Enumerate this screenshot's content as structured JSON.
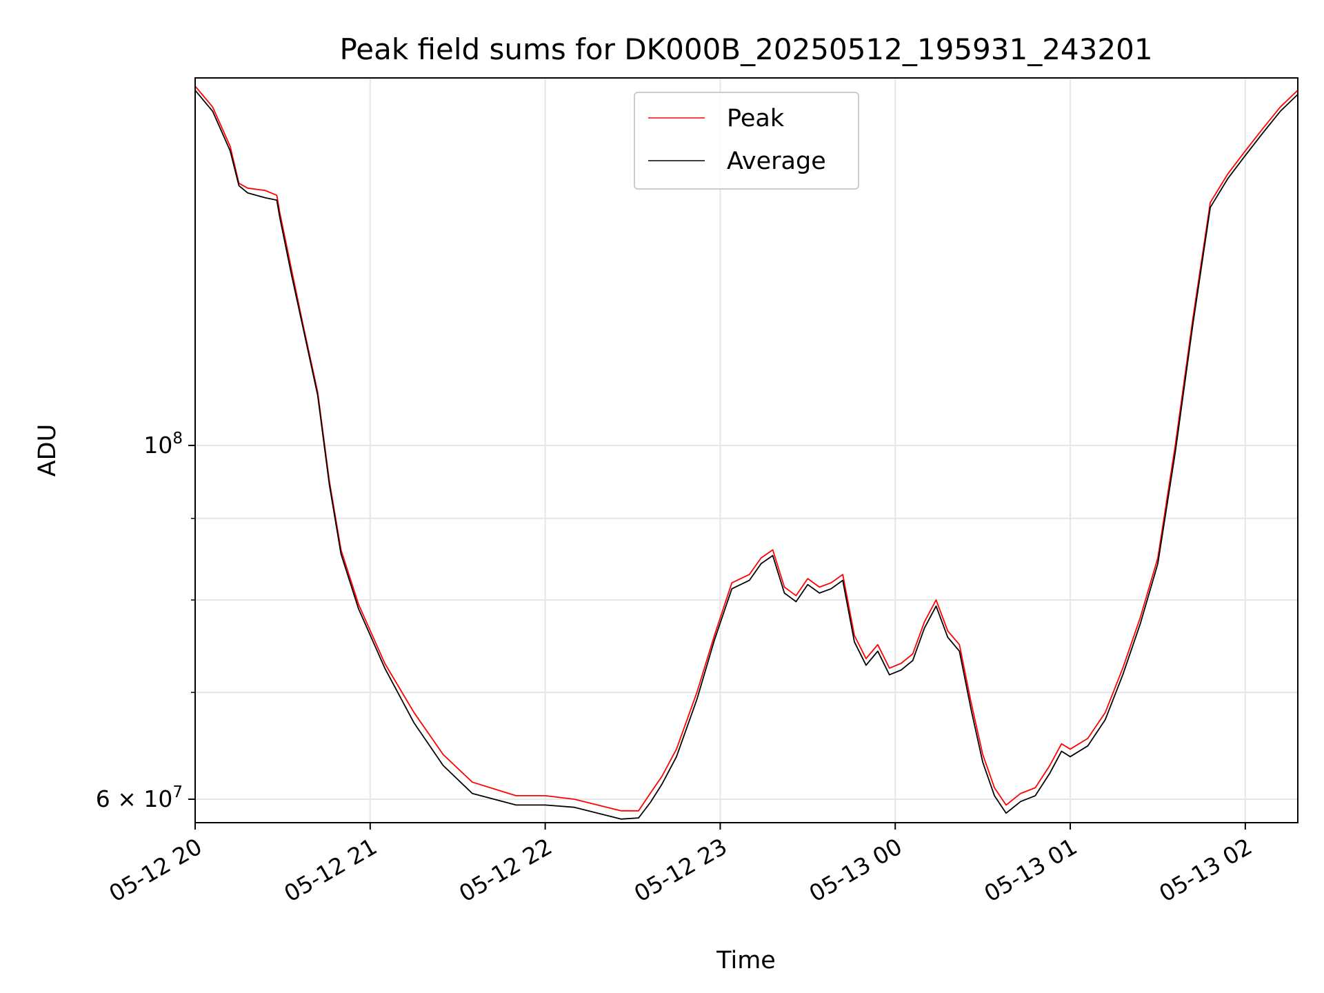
{
  "chart_data": {
    "type": "line",
    "title": "Peak field sums for DK000B_20250512_195931_243201",
    "xlabel": "Time",
    "ylabel": "ADU",
    "y_scale": "log",
    "xlim": [
      "2025-05-12 20:00",
      "2025-05-13 02:18"
    ],
    "ylim": [
      58000000,
      170000000
    ],
    "x_tick_labels": [
      "05-12 20",
      "05-12 21",
      "05-12 22",
      "05-12 23",
      "05-13 00",
      "05-13 01",
      "05-13 02"
    ],
    "y_tick_labels": [
      {
        "mantissa": "",
        "base": "10",
        "exp": "8"
      },
      {
        "mantissa": "6 × ",
        "base": "10",
        "exp": "7"
      }
    ],
    "grid": true,
    "legend_position": "top-center",
    "series": [
      {
        "name": "Peak",
        "color": "#ff0000",
        "x": [
          "2025-05-12 20:00",
          "2025-05-12 20:06",
          "2025-05-12 20:12",
          "2025-05-12 20:15",
          "2025-05-12 20:18",
          "2025-05-12 20:24",
          "2025-05-12 20:28",
          "2025-05-12 20:29",
          "2025-05-12 20:33",
          "2025-05-12 20:37",
          "2025-05-12 20:42",
          "2025-05-12 20:46",
          "2025-05-12 20:50",
          "2025-05-12 20:56",
          "2025-05-12 21:05",
          "2025-05-12 21:15",
          "2025-05-12 21:25",
          "2025-05-12 21:35",
          "2025-05-12 21:50",
          "2025-05-12 22:00",
          "2025-05-12 22:10",
          "2025-05-12 22:18",
          "2025-05-12 22:26",
          "2025-05-12 22:32",
          "2025-05-12 22:36",
          "2025-05-12 22:40",
          "2025-05-12 22:45",
          "2025-05-12 22:52",
          "2025-05-12 22:58",
          "2025-05-12 23:04",
          "2025-05-12 23:10",
          "2025-05-12 23:14",
          "2025-05-12 23:18",
          "2025-05-12 23:22",
          "2025-05-12 23:26",
          "2025-05-12 23:30",
          "2025-05-12 23:34",
          "2025-05-12 23:38",
          "2025-05-12 23:42",
          "2025-05-12 23:46",
          "2025-05-12 23:50",
          "2025-05-12 23:54",
          "2025-05-12 23:58",
          "2025-05-13 00:02",
          "2025-05-13 00:06",
          "2025-05-13 00:10",
          "2025-05-13 00:14",
          "2025-05-13 00:18",
          "2025-05-13 00:22",
          "2025-05-13 00:26",
          "2025-05-13 00:30",
          "2025-05-13 00:34",
          "2025-05-13 00:38",
          "2025-05-13 00:43",
          "2025-05-13 00:48",
          "2025-05-13 00:53",
          "2025-05-13 00:57",
          "2025-05-13 01:00",
          "2025-05-13 01:06",
          "2025-05-13 01:12",
          "2025-05-13 01:18",
          "2025-05-13 01:24",
          "2025-05-13 01:30",
          "2025-05-13 01:36",
          "2025-05-13 01:42",
          "2025-05-13 01:48",
          "2025-05-13 01:54",
          "2025-05-13 02:00",
          "2025-05-13 02:06",
          "2025-05-13 02:12",
          "2025-05-13 02:18"
        ],
        "values": [
          168000000,
          163000000,
          154000000,
          146000000,
          145000000,
          144500000,
          143500000,
          140000000,
          129000000,
          119000000,
          108000000,
          95000000,
          86000000,
          79500000,
          73000000,
          68000000,
          64000000,
          61500000,
          60300000,
          60300000,
          60000000,
          59500000,
          59000000,
          59000000,
          60500000,
          62000000,
          64500000,
          70000000,
          76000000,
          82000000,
          83000000,
          85000000,
          86000000,
          81500000,
          80500000,
          82500000,
          81500000,
          82000000,
          83000000,
          76000000,
          73500000,
          75000000,
          72500000,
          73000000,
          74000000,
          77500000,
          80000000,
          76500000,
          75000000,
          69000000,
          64000000,
          61000000,
          59500000,
          60500000,
          61000000,
          63000000,
          65000000,
          64500000,
          65500000,
          68000000,
          72500000,
          78000000,
          85000000,
          100000000,
          120000000,
          142000000,
          148000000,
          153000000,
          158000000,
          163000000,
          167000000
        ]
      },
      {
        "name": "Average",
        "color": "#000000",
        "x": [
          "2025-05-12 20:00",
          "2025-05-12 20:06",
          "2025-05-12 20:12",
          "2025-05-12 20:15",
          "2025-05-12 20:18",
          "2025-05-12 20:24",
          "2025-05-12 20:28",
          "2025-05-12 20:29",
          "2025-05-12 20:33",
          "2025-05-12 20:37",
          "2025-05-12 20:42",
          "2025-05-12 20:46",
          "2025-05-12 20:50",
          "2025-05-12 20:56",
          "2025-05-12 21:05",
          "2025-05-12 21:15",
          "2025-05-12 21:25",
          "2025-05-12 21:35",
          "2025-05-12 21:50",
          "2025-05-12 22:00",
          "2025-05-12 22:10",
          "2025-05-12 22:18",
          "2025-05-12 22:26",
          "2025-05-12 22:32",
          "2025-05-12 22:36",
          "2025-05-12 22:40",
          "2025-05-12 22:45",
          "2025-05-12 22:52",
          "2025-05-12 22:58",
          "2025-05-12 23:04",
          "2025-05-12 23:10",
          "2025-05-12 23:14",
          "2025-05-12 23:18",
          "2025-05-12 23:22",
          "2025-05-12 23:26",
          "2025-05-12 23:30",
          "2025-05-12 23:34",
          "2025-05-12 23:38",
          "2025-05-12 23:42",
          "2025-05-12 23:46",
          "2025-05-12 23:50",
          "2025-05-12 23:54",
          "2025-05-12 23:58",
          "2025-05-13 00:02",
          "2025-05-13 00:06",
          "2025-05-13 00:10",
          "2025-05-13 00:14",
          "2025-05-13 00:18",
          "2025-05-13 00:22",
          "2025-05-13 00:26",
          "2025-05-13 00:30",
          "2025-05-13 00:34",
          "2025-05-13 00:38",
          "2025-05-13 00:43",
          "2025-05-13 00:48",
          "2025-05-13 00:53",
          "2025-05-13 00:57",
          "2025-05-13 01:00",
          "2025-05-13 01:06",
          "2025-05-13 01:12",
          "2025-05-13 01:18",
          "2025-05-13 01:24",
          "2025-05-13 01:30",
          "2025-05-13 01:36",
          "2025-05-13 01:42",
          "2025-05-13 01:48",
          "2025-05-13 01:54",
          "2025-05-13 02:00",
          "2025-05-13 02:06",
          "2025-05-13 02:12",
          "2025-05-13 02:18"
        ],
        "values": [
          167000000,
          162000000,
          153000000,
          145500000,
          144000000,
          143000000,
          142500000,
          139000000,
          128000000,
          118500000,
          107500000,
          94500000,
          85500000,
          79000000,
          72500000,
          67000000,
          63000000,
          60500000,
          59500000,
          59500000,
          59300000,
          58800000,
          58300000,
          58400000,
          59700000,
          61300000,
          63800000,
          69300000,
          75500000,
          81300000,
          82300000,
          84300000,
          85300000,
          80800000,
          79800000,
          81800000,
          80800000,
          81300000,
          82300000,
          75300000,
          72800000,
          74300000,
          71800000,
          72300000,
          73300000,
          76800000,
          79300000,
          75800000,
          74300000,
          68300000,
          63300000,
          60300000,
          58800000,
          59800000,
          60300000,
          62300000,
          64300000,
          63800000,
          64800000,
          67300000,
          71800000,
          77300000,
          84300000,
          99000000,
          119000000,
          141000000,
          147000000,
          152000000,
          157000000,
          162000000,
          166000000
        ]
      }
    ]
  }
}
